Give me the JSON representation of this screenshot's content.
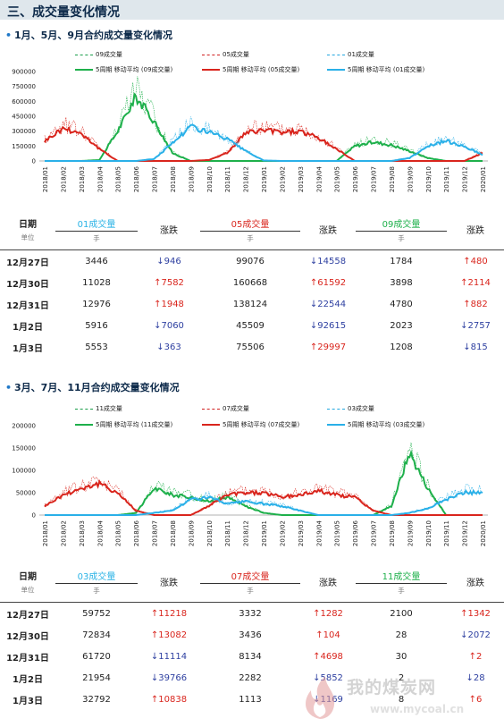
{
  "header": {
    "title": "三、成交量变化情况"
  },
  "section1": {
    "title": "1月、5月、9月合约成交量变化情况",
    "legend": [
      "09成交量",
      "05成交量",
      "01成交量",
      "5周期 移动平均 (09成交量)",
      "5周期 移动平均 (05成交量)",
      "5周期 移动平均 (01成交量)"
    ]
  },
  "section2": {
    "title": "3月、7月、11月合约成交量变化情况",
    "legend": [
      "11成交量",
      "07成交量",
      "03成交量",
      "5周期 移动平均 (11成交量)",
      "5周期 移动平均 (07成交量)",
      "5周期 移动平均 (03成交量)"
    ]
  },
  "table1": {
    "date_header": "日期",
    "unit_label": "单位",
    "col1": "01成交量",
    "col2": "05成交量",
    "col3": "09成交量",
    "change": "涨跌",
    "unit": "手",
    "rows": [
      {
        "date": "12月27日",
        "v1": "3446",
        "c1": "946",
        "d1": "down",
        "v2": "99076",
        "c2": "14558",
        "d2": "down",
        "v3": "1784",
        "c3": "480",
        "d3": "up"
      },
      {
        "date": "12月30日",
        "v1": "11028",
        "c1": "7582",
        "d1": "up",
        "v2": "160668",
        "c2": "61592",
        "d2": "up",
        "v3": "3898",
        "c3": "2114",
        "d3": "up"
      },
      {
        "date": "12月31日",
        "v1": "12976",
        "c1": "1948",
        "d1": "up",
        "v2": "138124",
        "c2": "22544",
        "d2": "down",
        "v3": "4780",
        "c3": "882",
        "d3": "up"
      },
      {
        "date": "1月2日",
        "v1": "5916",
        "c1": "7060",
        "d1": "down",
        "v2": "45509",
        "c2": "92615",
        "d2": "down",
        "v3": "2023",
        "c3": "2757",
        "d3": "down"
      },
      {
        "date": "1月3日",
        "v1": "5553",
        "c1": "363",
        "d1": "down",
        "v2": "75506",
        "c2": "29997",
        "d2": "up",
        "v3": "1208",
        "c3": "815",
        "d3": "down"
      }
    ]
  },
  "table2": {
    "date_header": "日期",
    "unit_label": "单位",
    "col1": "03成交量",
    "col2": "07成交量",
    "col3": "11成交量",
    "change": "涨跌",
    "unit": "手",
    "rows": [
      {
        "date": "12月27日",
        "v1": "59752",
        "c1": "11218",
        "d1": "up",
        "v2": "3332",
        "c2": "1282",
        "d2": "up",
        "v3": "2100",
        "c3": "1342",
        "d3": "up"
      },
      {
        "date": "12月30日",
        "v1": "72834",
        "c1": "13082",
        "d1": "up",
        "v2": "3436",
        "c2": "104",
        "d2": "up",
        "v3": "28",
        "c3": "2072",
        "d3": "down"
      },
      {
        "date": "12月31日",
        "v1": "61720",
        "c1": "11114",
        "d1": "down",
        "v2": "8134",
        "c2": "4698",
        "d2": "up",
        "v3": "30",
        "c3": "2",
        "d3": "up"
      },
      {
        "date": "1月2日",
        "v1": "21954",
        "c1": "39766",
        "d1": "down",
        "v2": "2282",
        "c2": "5852",
        "d2": "down",
        "v3": "2",
        "c3": "28",
        "d3": "down"
      },
      {
        "date": "1月3日",
        "v1": "32792",
        "c1": "10838",
        "d1": "up",
        "v2": "1113",
        "c2": "1169",
        "d2": "down",
        "v3": "8",
        "c3": "6",
        "d3": "up"
      }
    ]
  },
  "watermark": {
    "text": "我的煤炭网",
    "url": "www.mycoal.cn"
  },
  "chart_data": [
    {
      "type": "line",
      "x": [
        "2018/01",
        "2018/02",
        "2018/03",
        "2018/04",
        "2018/05",
        "2018/06",
        "2018/07",
        "2018/08",
        "2018/09",
        "2018/10",
        "2018/11",
        "2018/12",
        "2019/01",
        "2019/02",
        "2019/03",
        "2019/04",
        "2019/05",
        "2019/06",
        "2019/07",
        "2019/08",
        "2019/09",
        "2019/10",
        "2019/11",
        "2019/12",
        "2020/01"
      ],
      "ylim": [
        0,
        900000
      ],
      "yticks": [
        "0",
        "150000",
        "300000",
        "450000",
        "600000",
        "750000",
        "900000"
      ],
      "colors": {
        "s09": "#1eb04b",
        "s05": "#d9251d",
        "s01": "#2ab0e8"
      },
      "series": [
        {
          "name": "5周期 移动平均 (09成交量)",
          "values": [
            0,
            0,
            0,
            10000,
            300000,
            650000,
            400000,
            80000,
            0,
            0,
            0,
            0,
            0,
            0,
            0,
            0,
            0,
            150000,
            190000,
            160000,
            100000,
            30000,
            0,
            0,
            0
          ]
        },
        {
          "name": "5周期 移动平均 (05成交量)",
          "values": [
            200000,
            330000,
            280000,
            120000,
            0,
            0,
            0,
            0,
            0,
            10000,
            80000,
            280000,
            310000,
            290000,
            300000,
            230000,
            120000,
            0,
            0,
            0,
            0,
            0,
            0,
            0,
            80000
          ]
        },
        {
          "name": "5周期 移动平均 (01成交量)",
          "values": [
            0,
            0,
            0,
            0,
            0,
            0,
            20000,
            180000,
            350000,
            290000,
            220000,
            100000,
            5000,
            0,
            0,
            0,
            0,
            0,
            0,
            0,
            30000,
            150000,
            200000,
            150000,
            60000
          ]
        }
      ]
    },
    {
      "type": "line",
      "x": [
        "2018/01",
        "2018/02",
        "2018/03",
        "2018/04",
        "2018/05",
        "2018/06",
        "2018/07",
        "2018/08",
        "2018/09",
        "2018/10",
        "2018/11",
        "2018/12",
        "2019/01",
        "2019/02",
        "2019/03",
        "2019/04",
        "2019/05",
        "2019/06",
        "2019/07",
        "2019/08",
        "2019/09",
        "2019/10",
        "2019/11",
        "2019/12",
        "2020/01"
      ],
      "ylim": [
        0,
        200000
      ],
      "yticks": [
        "0",
        "50000",
        "100000",
        "150000",
        "200000"
      ],
      "colors": {
        "s11": "#1eb04b",
        "s07": "#d9251d",
        "s03": "#2ab0e8"
      },
      "series": [
        {
          "name": "5周期 移动平均 (11成交量)",
          "values": [
            0,
            0,
            0,
            0,
            0,
            5000,
            60000,
            45000,
            40000,
            30000,
            40000,
            20000,
            5000,
            0,
            0,
            0,
            0,
            0,
            0,
            20000,
            140000,
            60000,
            0,
            0,
            0
          ]
        },
        {
          "name": "5周期 移动平均 (07成交量)",
          "values": [
            20000,
            45000,
            60000,
            70000,
            50000,
            10000,
            0,
            0,
            0,
            20000,
            45000,
            50000,
            50000,
            40000,
            45000,
            55000,
            45000,
            40000,
            10000,
            0,
            0,
            0,
            0,
            0,
            0
          ]
        },
        {
          "name": "5周期 移动平均 (03成交量)",
          "values": [
            0,
            0,
            0,
            0,
            0,
            0,
            5000,
            10000,
            35000,
            40000,
            25000,
            30000,
            25000,
            20000,
            10000,
            0,
            0,
            0,
            0,
            0,
            5000,
            15000,
            35000,
            50000,
            50000
          ]
        }
      ]
    }
  ]
}
